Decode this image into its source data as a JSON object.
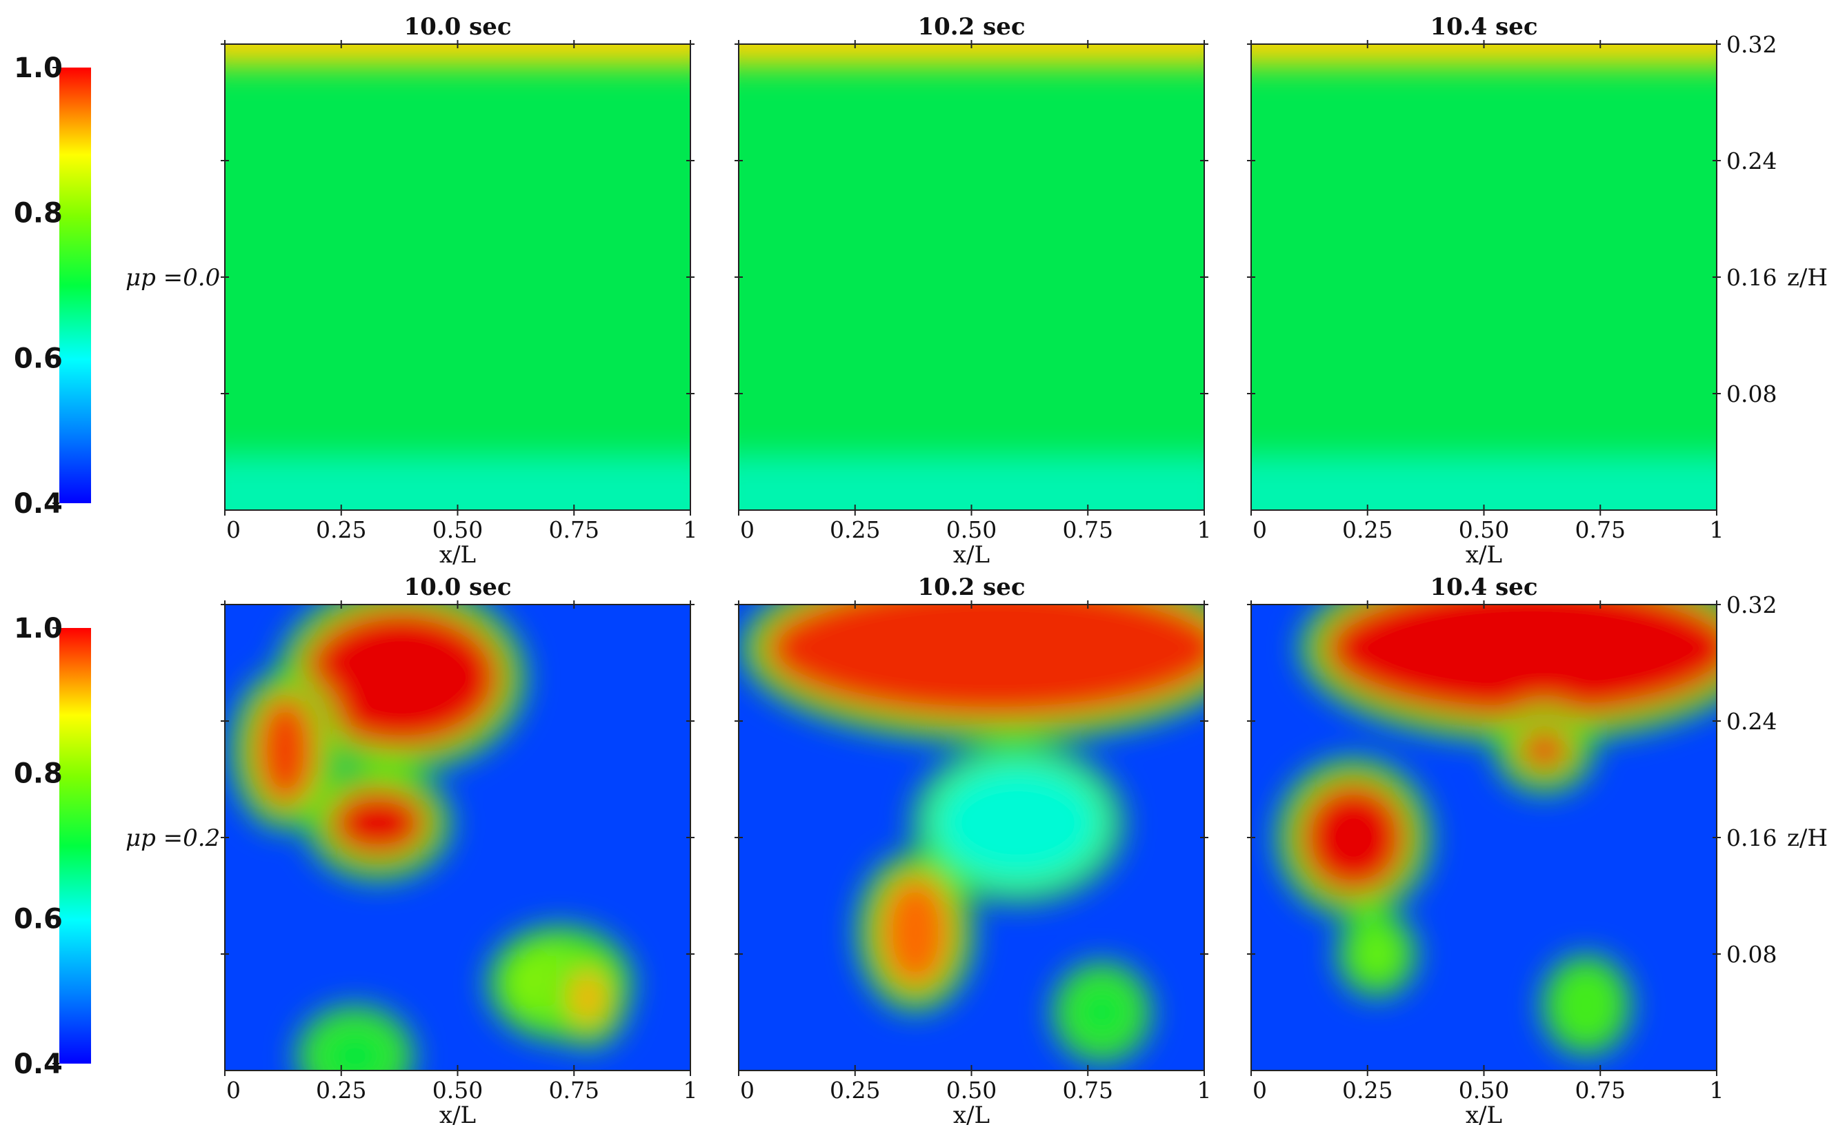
{
  "chart_data": [
    {
      "type": "heatmap",
      "row_label": "μp =0.0",
      "colorbar": {
        "range": [
          0.4,
          1.0
        ],
        "ticks": [
          "1.0",
          "0.8",
          "0.6",
          "0.4"
        ]
      },
      "xlabel": "x/L",
      "ylabel": "z/H",
      "x_ticks": [
        "0",
        "0.25",
        "0.50",
        "0.75",
        "1"
      ],
      "y_ticks": [
        "0.32",
        "0.24",
        "0.16",
        "0.08"
      ],
      "xlim": [
        0,
        1
      ],
      "ylim": [
        0,
        0.32
      ],
      "panels": [
        {
          "title": "10.0 sec",
          "blobs": []
        },
        {
          "title": "10.2 sec",
          "blobs": []
        },
        {
          "title": "10.4 sec",
          "blobs": []
        }
      ],
      "background_value": 0.69,
      "top_band_value": 0.9
    },
    {
      "type": "heatmap",
      "row_label": "μp =0.2",
      "colorbar": {
        "range": [
          0.4,
          1.0
        ],
        "ticks": [
          "1.0",
          "0.8",
          "0.6",
          "0.4"
        ]
      },
      "xlabel": "x/L",
      "ylabel": "z/H",
      "x_ticks": [
        "0",
        "0.25",
        "0.50",
        "0.75",
        "1"
      ],
      "y_ticks": [
        "0.32",
        "0.24",
        "0.16",
        "0.08"
      ],
      "xlim": [
        0,
        1
      ],
      "ylim": [
        0,
        0.32
      ],
      "background_value": 0.45,
      "panels": [
        {
          "title": "10.0 sec",
          "blobs": [
            {
              "x": 0.38,
              "z": 0.27,
              "rx": 0.22,
              "rz": 0.05,
              "v": 1.0
            },
            {
              "x": 0.13,
              "z": 0.22,
              "rx": 0.07,
              "rz": 0.04,
              "v": 0.97
            },
            {
              "x": 0.33,
              "z": 0.17,
              "rx": 0.11,
              "rz": 0.025,
              "v": 1.0
            },
            {
              "x": 0.72,
              "z": 0.06,
              "rx": 0.11,
              "rz": 0.025,
              "v": 0.8
            },
            {
              "x": 0.78,
              "z": 0.05,
              "rx": 0.04,
              "rz": 0.02,
              "v": 0.92
            },
            {
              "x": 0.28,
              "z": 0.01,
              "rx": 0.08,
              "rz": 0.02,
              "v": 0.7
            }
          ]
        },
        {
          "title": "10.2 sec",
          "blobs": [
            {
              "x": 0.55,
              "z": 0.29,
              "rx": 0.5,
              "rz": 0.05,
              "v": 0.98
            },
            {
              "x": 0.38,
              "z": 0.095,
              "rx": 0.08,
              "rz": 0.04,
              "v": 0.95
            },
            {
              "x": 0.78,
              "z": 0.04,
              "rx": 0.06,
              "rz": 0.02,
              "v": 0.7
            },
            {
              "x": 0.6,
              "z": 0.17,
              "rx": 0.18,
              "rz": 0.04,
              "v": 0.62
            }
          ]
        },
        {
          "title": "10.4 sec",
          "blobs": [
            {
              "x": 0.6,
              "z": 0.29,
              "rx": 0.45,
              "rz": 0.05,
              "v": 1.0
            },
            {
              "x": 0.63,
              "z": 0.22,
              "rx": 0.06,
              "rz": 0.015,
              "v": 0.98
            },
            {
              "x": 0.22,
              "z": 0.16,
              "rx": 0.12,
              "rz": 0.04,
              "v": 1.0
            },
            {
              "x": 0.27,
              "z": 0.08,
              "rx": 0.04,
              "rz": 0.015,
              "v": 0.78
            },
            {
              "x": 0.72,
              "z": 0.045,
              "rx": 0.05,
              "rz": 0.02,
              "v": 0.75
            }
          ]
        }
      ]
    }
  ]
}
